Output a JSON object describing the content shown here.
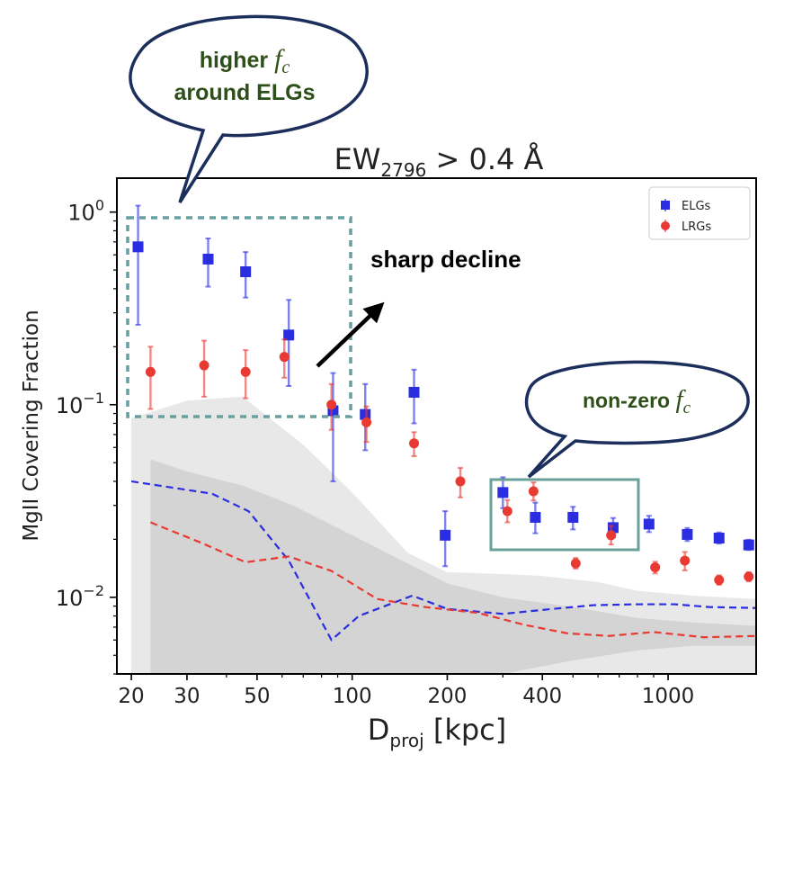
{
  "chart_data": {
    "type": "scatter",
    "title_main": "EW",
    "title_sub": "2796",
    "title_rest": " > 0.4 Å",
    "xlabel_main": "D",
    "xlabel_sub": "proj",
    "xlabel_rest": " [kpc]",
    "ylabel": "MgII Covering Fraction",
    "xscale": "log",
    "yscale": "log",
    "xlim": [
      18,
      1900
    ],
    "ylim": [
      0.004,
      1.5
    ],
    "x_ticks": [
      20,
      30,
      50,
      100,
      200,
      400,
      1000
    ],
    "x_tick_labels": [
      "20",
      "30",
      "50",
      "100",
      "200",
      "400",
      "1000"
    ],
    "y_ticks": [
      1,
      0.1,
      0.01
    ],
    "y_tick_labels": [
      {
        "base": "10",
        "exp": "0"
      },
      {
        "base": "10",
        "exp": "−1"
      },
      {
        "base": "10",
        "exp": "−2"
      }
    ],
    "legend_position": "top-right",
    "series": [
      {
        "name": "ELGs",
        "color": "#2a2ee0",
        "marker": "square",
        "points": [
          {
            "x": 21,
            "y": 0.66,
            "lo": 0.26,
            "hi": 1.08
          },
          {
            "x": 35,
            "y": 0.57,
            "lo": 0.41,
            "hi": 0.73
          },
          {
            "x": 46,
            "y": 0.49,
            "lo": 0.36,
            "hi": 0.62
          },
          {
            "x": 63,
            "y": 0.23,
            "lo": 0.125,
            "hi": 0.35
          },
          {
            "x": 87,
            "y": 0.093,
            "lo": 0.04,
            "hi": 0.146
          },
          {
            "x": 110,
            "y": 0.089,
            "lo": 0.058,
            "hi": 0.128
          },
          {
            "x": 157,
            "y": 0.116,
            "lo": 0.08,
            "hi": 0.152
          },
          {
            "x": 197,
            "y": 0.021,
            "lo": 0.0145,
            "hi": 0.028
          },
          {
            "x": 300,
            "y": 0.035,
            "lo": 0.029,
            "hi": 0.042
          },
          {
            "x": 380,
            "y": 0.026,
            "lo": 0.0215,
            "hi": 0.031
          },
          {
            "x": 500,
            "y": 0.026,
            "lo": 0.0225,
            "hi": 0.0295
          },
          {
            "x": 670,
            "y": 0.023,
            "lo": 0.0205,
            "hi": 0.0258
          },
          {
            "x": 870,
            "y": 0.024,
            "lo": 0.0218,
            "hi": 0.0265
          },
          {
            "x": 1150,
            "y": 0.0212,
            "lo": 0.0196,
            "hi": 0.0229
          },
          {
            "x": 1450,
            "y": 0.0203,
            "lo": 0.019,
            "hi": 0.0217
          },
          {
            "x": 1800,
            "y": 0.0187,
            "lo": 0.0176,
            "hi": 0.0199
          }
        ]
      },
      {
        "name": "LRGs",
        "color": "#e83a32",
        "marker": "circle",
        "points": [
          {
            "x": 23,
            "y": 0.148,
            "lo": 0.095,
            "hi": 0.2
          },
          {
            "x": 34,
            "y": 0.16,
            "lo": 0.11,
            "hi": 0.215
          },
          {
            "x": 46,
            "y": 0.148,
            "lo": 0.108,
            "hi": 0.192
          },
          {
            "x": 61,
            "y": 0.177,
            "lo": 0.138,
            "hi": 0.218
          },
          {
            "x": 86,
            "y": 0.1,
            "lo": 0.074,
            "hi": 0.128
          },
          {
            "x": 111,
            "y": 0.081,
            "lo": 0.064,
            "hi": 0.098
          },
          {
            "x": 157,
            "y": 0.063,
            "lo": 0.054,
            "hi": 0.072
          },
          {
            "x": 220,
            "y": 0.04,
            "lo": 0.033,
            "hi": 0.047
          },
          {
            "x": 310,
            "y": 0.028,
            "lo": 0.0245,
            "hi": 0.032
          },
          {
            "x": 375,
            "y": 0.0355,
            "lo": 0.0318,
            "hi": 0.0395
          },
          {
            "x": 510,
            "y": 0.015,
            "lo": 0.0141,
            "hi": 0.016
          },
          {
            "x": 660,
            "y": 0.021,
            "lo": 0.0188,
            "hi": 0.0235
          },
          {
            "x": 910,
            "y": 0.0143,
            "lo": 0.0133,
            "hi": 0.0153
          },
          {
            "x": 1130,
            "y": 0.0155,
            "lo": 0.0138,
            "hi": 0.0172
          },
          {
            "x": 1450,
            "y": 0.0123,
            "lo": 0.0116,
            "hi": 0.013
          },
          {
            "x": 1800,
            "y": 0.0128,
            "lo": 0.0121,
            "hi": 0.0135
          }
        ]
      }
    ],
    "dashed_lines": [
      {
        "color": "#2a2ee0",
        "points": [
          [
            20,
            0.04
          ],
          [
            36,
            0.0345
          ],
          [
            47,
            0.028
          ],
          [
            63,
            0.0155
          ],
          [
            86,
            0.006
          ],
          [
            105,
            0.008
          ],
          [
            155,
            0.0102
          ],
          [
            200,
            0.0087
          ],
          [
            300,
            0.0082
          ],
          [
            430,
            0.0087
          ],
          [
            580,
            0.0091
          ],
          [
            800,
            0.0092
          ],
          [
            1050,
            0.0092
          ],
          [
            1350,
            0.0089
          ],
          [
            1900,
            0.0088
          ]
        ]
      }
    ],
    "dashed_lines_2": [
      {
        "color": "#e83a32",
        "points": [
          [
            23,
            0.0245
          ],
          [
            33,
            0.0193
          ],
          [
            46,
            0.0152
          ],
          [
            63,
            0.0163
          ],
          [
            86,
            0.0137
          ],
          [
            120,
            0.0098
          ],
          [
            170,
            0.0089
          ],
          [
            250,
            0.0083
          ],
          [
            350,
            0.0072
          ],
          [
            480,
            0.0065
          ],
          [
            650,
            0.0063
          ],
          [
            900,
            0.0066
          ],
          [
            1300,
            0.0062
          ],
          [
            1900,
            0.0063
          ]
        ]
      }
    ],
    "bands": [
      {
        "color": "#d6d6d6",
        "opacity": 0.55,
        "upper": [
          [
            20,
            0.085
          ],
          [
            30,
            0.105
          ],
          [
            45,
            0.11
          ],
          [
            70,
            0.062
          ],
          [
            100,
            0.035
          ],
          [
            150,
            0.017
          ],
          [
            200,
            0.0135
          ],
          [
            300,
            0.0132
          ],
          [
            400,
            0.0129
          ],
          [
            600,
            0.012
          ],
          [
            800,
            0.0108
          ],
          [
            1200,
            0.0102
          ],
          [
            1900,
            0.0098
          ]
        ],
        "lower": [
          [
            20,
            0.004
          ],
          [
            1900,
            0.004
          ]
        ]
      },
      {
        "color": "#bdbdbd",
        "opacity": 0.45,
        "upper": [
          [
            23,
            0.052
          ],
          [
            30,
            0.045
          ],
          [
            45,
            0.038
          ],
          [
            65,
            0.03
          ],
          [
            100,
            0.021
          ],
          [
            150,
            0.015
          ],
          [
            200,
            0.0118
          ],
          [
            300,
            0.01
          ],
          [
            500,
            0.0089
          ],
          [
            800,
            0.0078
          ],
          [
            1200,
            0.0074
          ],
          [
            1900,
            0.0071
          ]
        ],
        "lower": [
          [
            23,
            0.004
          ],
          [
            300,
            0.004
          ],
          [
            500,
            0.0047
          ],
          [
            800,
            0.0053
          ],
          [
            1200,
            0.0056
          ],
          [
            1900,
            0.0056
          ]
        ]
      }
    ],
    "annotations": {
      "bubble1_line1": "higher",
      "bubble1_math": "f",
      "bubble1_math_sub": "c",
      "bubble1_line2": "around ELGs",
      "sharp_decline": "sharp decline",
      "bubble2_text": "non-zero",
      "bubble2_math": "f",
      "bubble2_math_sub": "c"
    },
    "colors": {
      "elg": "#2a2ee0",
      "lrg": "#e83a32",
      "box_dashed": "#6a9fa2",
      "box_solid": "#6aa09a",
      "bubble_stroke": "#1c2e5c",
      "annotation_text": "#2f4f1a"
    }
  }
}
